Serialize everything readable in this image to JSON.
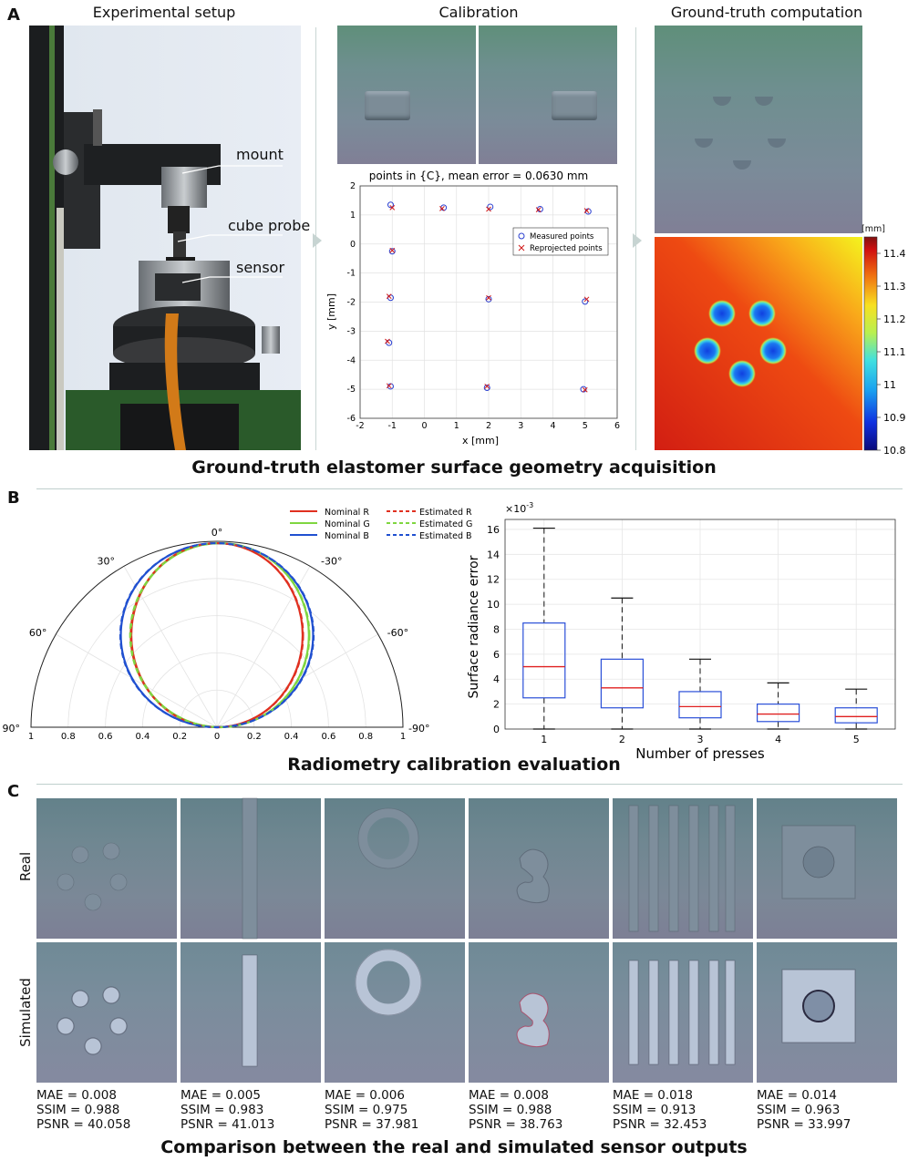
{
  "panel_a": {
    "letter": "A",
    "col_titles": [
      "Experimental setup",
      "Calibration",
      "Ground-truth computation"
    ],
    "setup_labels": [
      "mount",
      "cube probe",
      "sensor"
    ],
    "calib_plot": {
      "title": "points in {C}, mean error = 0.0630 mm",
      "xlabel": "x [mm]",
      "ylabel": "y [mm]",
      "legend": [
        "Measured points",
        "Reprojected points"
      ]
    },
    "colorbar": {
      "unit": "[mm]",
      "ticks": [
        "11.4",
        "11.3",
        "11.2",
        "11.1",
        "11",
        "10.9",
        "10.8"
      ]
    },
    "caption": "Ground-truth elastomer surface geometry acquisition"
  },
  "panel_b": {
    "letter": "B",
    "caption": "Radiometry calibration evaluation",
    "polar": {
      "legend": [
        "Nominal R",
        "Nominal G",
        "Nominal B",
        "Estimated R",
        "Estimated G",
        "Estimated B"
      ],
      "angle_labels": [
        "0°",
        "30°",
        "-30°",
        "60°",
        "-60°",
        "90°",
        "-90°"
      ],
      "radial_ticks": [
        "1",
        "0.8",
        "0.6",
        "0.4",
        "0.2",
        "0",
        "0.2",
        "0.4",
        "0.6",
        "0.8",
        "1"
      ]
    },
    "box": {
      "ylabel": "Surface radiance error",
      "xlabel": "Number of presses",
      "exponent": "×10",
      "exponent_power": "-3"
    }
  },
  "panel_c": {
    "letter": "C",
    "row_labels": [
      "Real",
      "Simulated"
    ],
    "caption": "Comparison between the real and simulated sensor outputs",
    "metrics": [
      {
        "mae": "MAE = 0.008",
        "ssim": "SSIM = 0.988",
        "psnr": "PSNR = 40.058"
      },
      {
        "mae": "MAE = 0.005",
        "ssim": "SSIM = 0.983",
        "psnr": "PSNR = 41.013"
      },
      {
        "mae": "MAE = 0.006",
        "ssim": "SSIM = 0.975",
        "psnr": "PSNR = 37.981"
      },
      {
        "mae": "MAE = 0.008",
        "ssim": "SSIM = 0.988",
        "psnr": "PSNR = 38.763"
      },
      {
        "mae": "MAE = 0.018",
        "ssim": "SSIM = 0.913",
        "psnr": "PSNR = 32.453"
      },
      {
        "mae": "MAE = 0.014",
        "ssim": "SSIM = 0.963",
        "psnr": "PSNR = 33.997"
      }
    ]
  },
  "chart_data": [
    {
      "type": "scatter",
      "title": "points in {C}, mean error = 0.0630 mm",
      "xlabel": "x [mm]",
      "ylabel": "y [mm]",
      "xlim": [
        -2,
        6
      ],
      "ylim": [
        -6,
        2
      ],
      "xticks": [
        -2,
        -1,
        0,
        1,
        2,
        3,
        4,
        5,
        6
      ],
      "yticks": [
        2,
        1,
        0,
        -1,
        -2,
        -3,
        -4,
        -5,
        -6
      ],
      "grid": true,
      "legend_position": "upper-right",
      "series": [
        {
          "name": "Measured points",
          "color": "#2a3fd0",
          "marker": "circle",
          "points": [
            [
              -1.05,
              1.35
            ],
            [
              0.6,
              1.25
            ],
            [
              2.05,
              1.28
            ],
            [
              3.6,
              1.2
            ],
            [
              5.1,
              1.12
            ],
            [
              -1.0,
              -0.25
            ],
            [
              -1.05,
              -1.85
            ],
            [
              2.0,
              -1.9
            ],
            [
              5.0,
              -1.98
            ],
            [
              -1.1,
              -3.4
            ],
            [
              -1.05,
              -4.9
            ],
            [
              1.95,
              -4.95
            ],
            [
              4.95,
              -5.0
            ]
          ]
        },
        {
          "name": "Reprojected points",
          "color": "#d01818",
          "marker": "x",
          "points": [
            [
              -1.0,
              1.25
            ],
            [
              0.55,
              1.22
            ],
            [
              2.0,
              1.2
            ],
            [
              3.55,
              1.18
            ],
            [
              5.05,
              1.15
            ],
            [
              -1.0,
              -0.22
            ],
            [
              -1.1,
              -1.8
            ],
            [
              2.0,
              -1.85
            ],
            [
              5.05,
              -1.9
            ],
            [
              -1.15,
              -3.35
            ],
            [
              -1.1,
              -4.88
            ],
            [
              1.95,
              -4.9
            ],
            [
              5.0,
              -5.02
            ]
          ]
        }
      ]
    },
    {
      "type": "heatmap",
      "unit": "[mm]",
      "colorbar_range": [
        10.8,
        11.45
      ],
      "colorbar_ticks": [
        11.4,
        11.3,
        11.2,
        11.1,
        11,
        10.9,
        10.8
      ]
    },
    {
      "type": "line",
      "subtype": "polar",
      "theta_range_deg": [
        -90,
        90
      ],
      "r_range": [
        0,
        1
      ],
      "theta_ticks_deg": [
        0,
        30,
        -30,
        60,
        -60,
        90,
        -90
      ],
      "r_ticks": [
        0,
        0.2,
        0.4,
        0.6,
        0.8,
        1
      ],
      "series": [
        {
          "name": "Nominal R",
          "color": "#e03020",
          "style": "solid",
          "max_r": 0.99
        },
        {
          "name": "Nominal G",
          "color": "#7fd640",
          "style": "solid",
          "max_r": 0.99
        },
        {
          "name": "Nominal B",
          "color": "#2050d0",
          "style": "solid",
          "max_r": 0.99
        },
        {
          "name": "Estimated R",
          "color": "#e03020",
          "style": "dashed",
          "max_r": 0.99
        },
        {
          "name": "Estimated G",
          "color": "#7fd640",
          "style": "dashed",
          "max_r": 0.99
        },
        {
          "name": "Estimated B",
          "color": "#2050d0",
          "style": "dashed",
          "max_r": 0.99
        }
      ]
    },
    {
      "type": "box",
      "xlabel": "Number of presses",
      "ylabel": "Surface radiance error",
      "y_scale_exponent": -3,
      "categories": [
        "1",
        "2",
        "3",
        "4",
        "5"
      ],
      "ylim": [
        0,
        16.8
      ],
      "yticks": [
        0,
        2,
        4,
        6,
        8,
        10,
        12,
        14,
        16
      ],
      "grid": true,
      "boxes": [
        {
          "min": 0,
          "q1": 2.5,
          "median": 5.0,
          "q3": 8.5,
          "max": 16.1
        },
        {
          "min": 0,
          "q1": 1.7,
          "median": 3.3,
          "q3": 5.6,
          "max": 10.5
        },
        {
          "min": 0,
          "q1": 0.9,
          "median": 1.8,
          "q3": 3.0,
          "max": 5.6
        },
        {
          "min": 0,
          "q1": 0.6,
          "median": 1.2,
          "q3": 2.0,
          "max": 3.7
        },
        {
          "min": 0,
          "q1": 0.5,
          "median": 1.0,
          "q3": 1.7,
          "max": 3.2
        }
      ]
    }
  ]
}
